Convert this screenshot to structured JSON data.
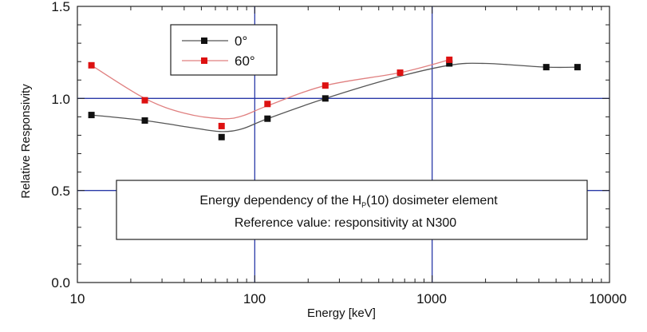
{
  "chart_data": {
    "type": "line",
    "xscale": "log",
    "xlim": [
      10,
      10000
    ],
    "ylim": [
      0.0,
      1.5
    ],
    "xlabel": "Energy [keV]",
    "ylabel": "Relative Responsivity",
    "xticks": [
      "10",
      "100",
      "1000",
      "10000"
    ],
    "yticks": [
      "0.0",
      "0.5",
      "1.0",
      "1.5"
    ],
    "grid": "major lines at x=100, x=1000 and y=0.5, y=1.0",
    "legend_placement": "top-left",
    "series": [
      {
        "name": "0°",
        "color": "#555555",
        "marker_color": "#111111",
        "points": [
          {
            "x": 12,
            "y": 0.91
          },
          {
            "x": 24,
            "y": 0.88
          },
          {
            "x": 65,
            "y": 0.79
          },
          {
            "x": 118,
            "y": 0.89
          },
          {
            "x": 250,
            "y": 1.0
          },
          {
            "x": 1250,
            "y": 1.19
          },
          {
            "x": 4400,
            "y": 1.17
          },
          {
            "x": 6600,
            "y": 1.17
          }
        ],
        "curve": [
          {
            "x": 12,
            "y": 0.91
          },
          {
            "x": 24,
            "y": 0.88
          },
          {
            "x": 45,
            "y": 0.84
          },
          {
            "x": 65,
            "y": 0.82
          },
          {
            "x": 85,
            "y": 0.835
          },
          {
            "x": 118,
            "y": 0.89
          },
          {
            "x": 250,
            "y": 1.0
          },
          {
            "x": 600,
            "y": 1.11
          },
          {
            "x": 1250,
            "y": 1.18
          },
          {
            "x": 2000,
            "y": 1.19
          },
          {
            "x": 4400,
            "y": 1.17
          },
          {
            "x": 6600,
            "y": 1.17
          }
        ]
      },
      {
        "name": "60°",
        "color": "#e08080",
        "marker_color": "#dd1111",
        "points": [
          {
            "x": 12,
            "y": 1.18
          },
          {
            "x": 24,
            "y": 0.99
          },
          {
            "x": 65,
            "y": 0.85
          },
          {
            "x": 118,
            "y": 0.97
          },
          {
            "x": 250,
            "y": 1.07
          },
          {
            "x": 660,
            "y": 1.14
          },
          {
            "x": 1250,
            "y": 1.21
          }
        ],
        "curve": [
          {
            "x": 12,
            "y": 1.18
          },
          {
            "x": 24,
            "y": 1.0
          },
          {
            "x": 40,
            "y": 0.92
          },
          {
            "x": 65,
            "y": 0.89
          },
          {
            "x": 85,
            "y": 0.905
          },
          {
            "x": 118,
            "y": 0.96
          },
          {
            "x": 250,
            "y": 1.07
          },
          {
            "x": 660,
            "y": 1.14
          },
          {
            "x": 1250,
            "y": 1.21
          }
        ]
      }
    ],
    "annotation": {
      "line1_prefix": "Energy dependency of the H",
      "line1_sub": "P",
      "line1_suffix": "(10) dosimeter element",
      "line2": "Reference value: responsitivity at N300"
    }
  }
}
